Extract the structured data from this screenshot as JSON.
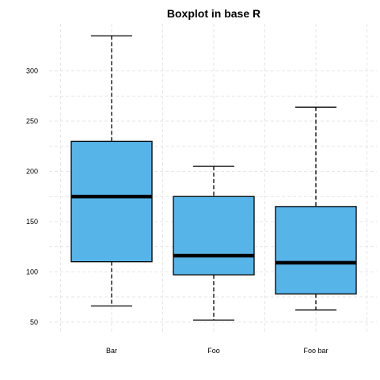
{
  "chart_data": {
    "type": "boxplot",
    "title": "Boxplot in base R",
    "xlabel": "",
    "ylabel": "",
    "categories": [
      "Bar",
      "Foo",
      "Foo bar"
    ],
    "boxes": [
      {
        "category": "Bar",
        "min": 66,
        "q1": 110,
        "median": 175,
        "q3": 230,
        "max": 335
      },
      {
        "category": "Foo",
        "min": 52,
        "q1": 97,
        "median": 116,
        "q3": 175,
        "max": 205
      },
      {
        "category": "Foo bar",
        "min": 62,
        "q1": 78,
        "median": 109,
        "q3": 165,
        "max": 264
      }
    ],
    "yticks": [
      50,
      100,
      150,
      200,
      250,
      300
    ],
    "ylim": [
      38,
      347
    ],
    "fill_color": "#56B4E9",
    "grid": true
  }
}
